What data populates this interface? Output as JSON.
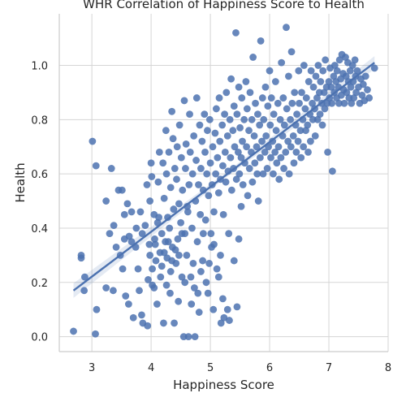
{
  "chart_data": {
    "type": "scatter",
    "title": "WHR Correlation of Happiness Score to Health",
    "xlabel": "Happiness Score",
    "ylabel": "Health",
    "xlim": [
      2.45,
      8.0
    ],
    "ylim": [
      -0.055,
      1.19
    ],
    "x_ticks": [
      "3",
      "4",
      "5",
      "6",
      "7",
      "8"
    ],
    "y_ticks": [
      "0.0",
      "0.2",
      "0.4",
      "0.6",
      "0.8",
      "1.0"
    ],
    "grid": true,
    "colors": {
      "points": "#4c72b0",
      "line": "#4c72b0",
      "grid": "#d5d5d5",
      "spine": "#cccccc"
    },
    "regression": {
      "x": [
        2.69,
        7.77
      ],
      "y": [
        0.17,
        1.01
      ]
    },
    "points": [
      [
        2.69,
        0.02
      ],
      [
        2.82,
        0.29
      ],
      [
        2.82,
        0.3
      ],
      [
        2.88,
        0.22
      ],
      [
        2.87,
        0.17
      ],
      [
        3.01,
        0.72
      ],
      [
        3.07,
        0.63
      ],
      [
        3.06,
        0.01
      ],
      [
        3.08,
        0.1
      ],
      [
        3.24,
        0.5
      ],
      [
        3.24,
        0.18
      ],
      [
        3.33,
        0.62
      ],
      [
        3.3,
        0.38
      ],
      [
        3.37,
        0.41
      ],
      [
        3.41,
        0.33
      ],
      [
        3.36,
        0.17
      ],
      [
        3.45,
        0.54
      ],
      [
        3.51,
        0.54
      ],
      [
        3.48,
        0.3
      ],
      [
        3.55,
        0.45
      ],
      [
        3.52,
        0.25
      ],
      [
        3.55,
        0.36
      ],
      [
        3.6,
        0.49
      ],
      [
        3.63,
        0.37
      ],
      [
        3.57,
        0.15
      ],
      [
        3.62,
        0.12
      ],
      [
        3.67,
        0.35
      ],
      [
        3.67,
        0.46
      ],
      [
        3.7,
        0.07
      ],
      [
        3.74,
        0.33
      ],
      [
        3.75,
        0.4
      ],
      [
        3.78,
        0.25
      ],
      [
        3.8,
        0.17
      ],
      [
        3.84,
        0.08
      ],
      [
        3.82,
        0.46
      ],
      [
        3.85,
        0.38
      ],
      [
        3.86,
        0.05
      ],
      [
        3.9,
        0.41
      ],
      [
        3.93,
        0.56
      ],
      [
        3.94,
        0.04
      ],
      [
        3.97,
        0.34
      ],
      [
        3.95,
        0.21
      ],
      [
        3.98,
        0.5
      ],
      [
        4.0,
        0.64
      ],
      [
        4.01,
        0.59
      ],
      [
        4.02,
        0.19
      ],
      [
        4.05,
        0.45
      ],
      [
        4.06,
        0.36
      ],
      [
        4.08,
        0.28
      ],
      [
        4.1,
        0.12
      ],
      [
        4.12,
        0.57
      ],
      [
        4.13,
        0.44
      ],
      [
        4.14,
        0.68
      ],
      [
        4.15,
        0.31
      ],
      [
        4.16,
        0.22
      ],
      [
        4.18,
        0.38
      ],
      [
        4.2,
        0.64
      ],
      [
        4.21,
        0.05
      ],
      [
        4.22,
        0.51
      ],
      [
        4.24,
        0.35
      ],
      [
        4.25,
        0.76
      ],
      [
        4.26,
        0.6
      ],
      [
        4.27,
        0.29
      ],
      [
        4.28,
        0.44
      ],
      [
        4.3,
        0.68
      ],
      [
        4.31,
        0.4
      ],
      [
        4.32,
        0.16
      ],
      [
        4.33,
        0.55
      ],
      [
        4.35,
        0.83
      ],
      [
        4.35,
        0.28
      ],
      [
        4.37,
        0.73
      ],
      [
        4.38,
        0.47
      ],
      [
        4.39,
        0.05
      ],
      [
        4.4,
        0.62
      ],
      [
        4.41,
        0.32
      ],
      [
        4.43,
        0.58
      ],
      [
        4.44,
        0.7
      ],
      [
        4.45,
        0.36
      ],
      [
        4.46,
        0.13
      ],
      [
        4.47,
        0.49
      ],
      [
        4.48,
        0.78
      ],
      [
        4.5,
        0.42
      ],
      [
        4.51,
        0.66
      ],
      [
        4.52,
        0.22
      ],
      [
        4.53,
        0.54
      ],
      [
        4.55,
        0.0
      ],
      [
        4.56,
        0.87
      ],
      [
        4.57,
        0.38
      ],
      [
        4.58,
        0.62
      ],
      [
        4.59,
        0.71
      ],
      [
        4.6,
        0.3
      ],
      [
        4.62,
        0.46
      ],
      [
        4.63,
        0.0
      ],
      [
        4.64,
        0.56
      ],
      [
        4.65,
        0.82
      ],
      [
        4.66,
        0.68
      ],
      [
        4.68,
        0.12
      ],
      [
        4.69,
        0.4
      ],
      [
        4.7,
        0.6
      ],
      [
        4.71,
        0.27
      ],
      [
        4.72,
        0.74
      ],
      [
        4.74,
        0.0
      ],
      [
        4.75,
        0.5
      ],
      [
        4.76,
        0.65
      ],
      [
        4.77,
        0.88
      ],
      [
        4.78,
        0.35
      ],
      [
        4.8,
        0.56
      ],
      [
        4.81,
        0.09
      ],
      [
        4.82,
        0.78
      ],
      [
        4.83,
        0.45
      ],
      [
        4.84,
        0.62
      ],
      [
        4.86,
        0.72
      ],
      [
        4.87,
        0.28
      ],
      [
        4.88,
        0.54
      ],
      [
        4.9,
        0.82
      ],
      [
        4.91,
        0.68
      ],
      [
        4.92,
        0.43
      ],
      [
        4.94,
        0.6
      ],
      [
        4.95,
        0.76
      ],
      [
        4.96,
        0.16
      ],
      [
        4.97,
        0.52
      ],
      [
        4.99,
        0.8
      ],
      [
        5.0,
        0.64
      ],
      [
        5.01,
        0.38
      ],
      [
        5.03,
        0.56
      ],
      [
        5.04,
        0.7
      ],
      [
        5.05,
        0.1
      ],
      [
        5.06,
        0.46
      ],
      [
        5.08,
        0.75
      ],
      [
        5.09,
        0.6
      ],
      [
        5.1,
        0.84
      ],
      [
        5.11,
        0.25
      ],
      [
        5.12,
        0.66
      ],
      [
        5.14,
        0.53
      ],
      [
        5.15,
        0.88
      ],
      [
        5.16,
        0.72
      ],
      [
        5.17,
        0.58
      ],
      [
        5.18,
        0.05
      ],
      [
        5.2,
        0.78
      ],
      [
        5.21,
        0.63
      ],
      [
        5.22,
        0.45
      ],
      [
        5.24,
        0.82
      ],
      [
        5.25,
        0.68
      ],
      [
        5.26,
        0.57
      ],
      [
        5.27,
        0.9
      ],
      [
        5.29,
        0.74
      ],
      [
        5.3,
        0.61
      ],
      [
        5.31,
        0.38
      ],
      [
        5.33,
        0.8
      ],
      [
        5.34,
        0.66
      ],
      [
        5.35,
        0.95
      ],
      [
        5.36,
        0.54
      ],
      [
        5.38,
        0.76
      ],
      [
        5.39,
        0.62
      ],
      [
        5.4,
        0.85
      ],
      [
        5.41,
        0.7
      ],
      [
        5.43,
        1.12
      ],
      [
        5.44,
        0.58
      ],
      [
        5.45,
        0.82
      ],
      [
        5.47,
        0.68
      ],
      [
        5.48,
        0.92
      ],
      [
        5.49,
        0.6
      ],
      [
        5.5,
        0.77
      ],
      [
        5.52,
        0.66
      ],
      [
        5.53,
        0.88
      ],
      [
        5.54,
        0.72
      ],
      [
        5.55,
        0.56
      ],
      [
        5.57,
        0.8
      ],
      [
        5.58,
        0.64
      ],
      [
        5.6,
        0.94
      ],
      [
        5.61,
        0.7
      ],
      [
        5.62,
        0.84
      ],
      [
        5.63,
        0.52
      ],
      [
        5.65,
        0.76
      ],
      [
        5.66,
        0.62
      ],
      [
        5.67,
        0.9
      ],
      [
        5.69,
        0.68
      ],
      [
        5.7,
        0.8
      ],
      [
        5.71,
        0.57
      ],
      [
        5.72,
        1.03
      ],
      [
        5.74,
        0.74
      ],
      [
        5.75,
        0.64
      ],
      [
        5.76,
        0.86
      ],
      [
        5.78,
        0.7
      ],
      [
        5.79,
        0.6
      ],
      [
        5.8,
        0.82
      ],
      [
        5.81,
        0.5
      ],
      [
        5.83,
        0.78
      ],
      [
        5.84,
        0.66
      ],
      [
        5.85,
        1.09
      ],
      [
        5.87,
        0.72
      ],
      [
        5.88,
        0.88
      ],
      [
        5.89,
        0.6
      ],
      [
        5.9,
        0.8
      ],
      [
        5.92,
        0.68
      ],
      [
        5.93,
        0.92
      ],
      [
        5.94,
        0.74
      ],
      [
        5.96,
        0.62
      ],
      [
        5.97,
        0.85
      ],
      [
        5.98,
        0.7
      ],
      [
        6.0,
        0.98
      ],
      [
        6.01,
        0.78
      ],
      [
        6.02,
        0.66
      ],
      [
        6.03,
        0.88
      ],
      [
        6.05,
        0.72
      ],
      [
        6.06,
        0.6
      ],
      [
        6.07,
        0.82
      ],
      [
        6.09,
        0.68
      ],
      [
        6.1,
        0.94
      ],
      [
        6.11,
        0.76
      ],
      [
        6.12,
        0.64
      ],
      [
        6.14,
        0.86
      ],
      [
        6.15,
        0.7
      ],
      [
        6.16,
        0.58
      ],
      [
        6.18,
        0.8
      ],
      [
        6.19,
        0.66
      ],
      [
        6.2,
        1.01
      ],
      [
        6.22,
        0.74
      ],
      [
        6.23,
        0.88
      ],
      [
        6.24,
        0.62
      ],
      [
        6.25,
        0.78
      ],
      [
        6.27,
        0.68
      ],
      [
        6.28,
        1.14
      ],
      [
        6.29,
        0.84
      ],
      [
        6.31,
        0.72
      ],
      [
        6.32,
        0.96
      ],
      [
        6.33,
        0.6
      ],
      [
        6.35,
        0.8
      ],
      [
        6.36,
        0.7
      ],
      [
        6.37,
        1.05
      ],
      [
        6.38,
        0.86
      ],
      [
        6.4,
        0.74
      ],
      [
        6.41,
        0.64
      ],
      [
        6.42,
        0.9
      ],
      [
        6.44,
        0.78
      ],
      [
        6.45,
        0.68
      ],
      [
        6.46,
        0.82
      ],
      [
        6.48,
        0.72
      ],
      [
        6.49,
        0.98
      ],
      [
        6.5,
        0.86
      ],
      [
        6.52,
        0.76
      ],
      [
        6.53,
        0.66
      ],
      [
        6.54,
        0.9
      ],
      [
        6.56,
        0.8
      ],
      [
        6.57,
        0.7
      ],
      [
        6.58,
        1.0
      ],
      [
        6.6,
        0.84
      ],
      [
        6.61,
        0.76
      ],
      [
        6.62,
        0.88
      ],
      [
        6.64,
        0.78
      ],
      [
        6.65,
        0.68
      ],
      [
        6.66,
        0.94
      ],
      [
        6.68,
        0.82
      ],
      [
        6.69,
        0.72
      ],
      [
        6.7,
        0.98
      ],
      [
        6.72,
        0.86
      ],
      [
        6.73,
        0.8
      ],
      [
        6.74,
        0.92
      ],
      [
        6.76,
        0.84
      ],
      [
        6.77,
        0.74
      ],
      [
        6.78,
        0.96
      ],
      [
        6.8,
        0.88
      ],
      [
        6.81,
        0.8
      ],
      [
        6.82,
        1.0
      ],
      [
        6.84,
        0.9
      ],
      [
        6.85,
        0.82
      ],
      [
        6.86,
        0.94
      ],
      [
        6.88,
        0.86
      ],
      [
        6.89,
        0.78
      ],
      [
        6.9,
        0.98
      ],
      [
        6.92,
        0.9
      ],
      [
        6.93,
        0.84
      ],
      [
        6.94,
        1.02
      ],
      [
        6.96,
        0.92
      ],
      [
        6.97,
        0.86
      ],
      [
        6.98,
        0.68
      ],
      [
        7.0,
        0.94
      ],
      [
        7.01,
        0.88
      ],
      [
        7.02,
        0.99
      ],
      [
        7.04,
        0.92
      ],
      [
        7.05,
        0.86
      ],
      [
        7.06,
        0.61
      ],
      [
        7.08,
        0.96
      ],
      [
        7.09,
        0.9
      ],
      [
        7.1,
        1.0
      ],
      [
        7.12,
        0.94
      ],
      [
        7.13,
        0.88
      ],
      [
        7.14,
        0.98
      ],
      [
        7.16,
        0.92
      ],
      [
        7.17,
        0.86
      ],
      [
        7.18,
        1.02
      ],
      [
        7.2,
        0.95
      ],
      [
        7.21,
        0.89
      ],
      [
        7.22,
        1.04
      ],
      [
        7.24,
        0.97
      ],
      [
        7.25,
        0.91
      ],
      [
        7.26,
        0.86
      ],
      [
        7.28,
        1.03
      ],
      [
        7.29,
        0.96
      ],
      [
        7.3,
        0.9
      ],
      [
        7.32,
        1.01
      ],
      [
        7.33,
        0.94
      ],
      [
        7.34,
        0.88
      ],
      [
        7.36,
        0.98
      ],
      [
        7.37,
        0.92
      ],
      [
        7.38,
        0.86
      ],
      [
        7.4,
        1.0
      ],
      [
        7.41,
        0.94
      ],
      [
        7.42,
        0.88
      ],
      [
        7.44,
        1.02
      ],
      [
        7.45,
        0.96
      ],
      [
        7.46,
        0.9
      ],
      [
        7.48,
        0.98
      ],
      [
        7.5,
        0.92
      ],
      [
        7.52,
        0.86
      ],
      [
        7.54,
        0.95
      ],
      [
        7.56,
        0.89
      ],
      [
        7.58,
        0.93
      ],
      [
        7.6,
        0.87
      ],
      [
        7.62,
        0.96
      ],
      [
        7.65,
        0.91
      ],
      [
        7.68,
        0.88
      ],
      [
        7.77,
        0.99
      ],
      [
        3.98,
        0.3
      ],
      [
        4.02,
        0.25
      ],
      [
        4.05,
        0.18
      ],
      [
        4.07,
        0.34
      ],
      [
        4.11,
        0.42
      ],
      [
        4.18,
        0.26
      ],
      [
        4.22,
        0.31
      ],
      [
        4.26,
        0.19
      ],
      [
        4.29,
        0.35
      ],
      [
        4.33,
        0.24
      ],
      [
        4.36,
        0.33
      ],
      [
        4.42,
        0.27
      ],
      [
        4.47,
        0.3
      ],
      [
        4.52,
        0.38
      ],
      [
        4.57,
        0.2
      ],
      [
        4.61,
        0.48
      ],
      [
        4.67,
        0.22
      ],
      [
        4.73,
        0.18
      ],
      [
        4.79,
        0.16
      ],
      [
        4.84,
        0.24
      ],
      [
        4.88,
        0.38
      ],
      [
        4.93,
        0.2
      ],
      [
        4.98,
        0.27
      ],
      [
        5.02,
        0.33
      ],
      [
        5.06,
        0.34
      ],
      [
        5.14,
        0.22
      ],
      [
        5.17,
        0.3
      ],
      [
        5.21,
        0.14
      ],
      [
        5.23,
        0.07
      ],
      [
        5.29,
        0.1
      ],
      [
        5.32,
        0.06
      ],
      [
        5.4,
        0.28
      ],
      [
        5.45,
        0.11
      ],
      [
        5.48,
        0.36
      ],
      [
        5.52,
        0.48
      ]
    ]
  }
}
